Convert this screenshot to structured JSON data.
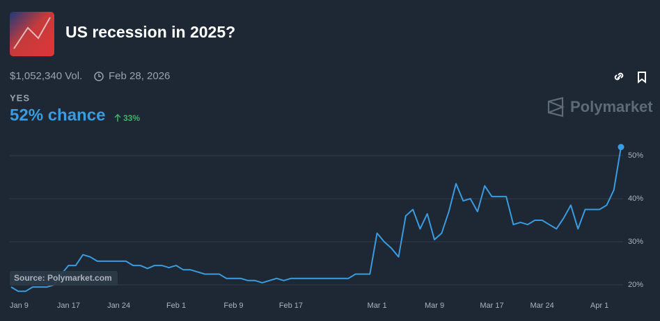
{
  "header": {
    "title": "US recession in 2025?",
    "volume": "$1,052,340 Vol.",
    "end_date": "Feb 28, 2026",
    "outcome": "YES",
    "chance": "52% chance",
    "change": "33%",
    "brand": "Polymarket"
  },
  "chart_data": {
    "type": "line",
    "source": "Source: Polymarket.com",
    "color": "#3b9be0",
    "grid": true,
    "categories": [
      "Jan 9",
      null,
      null,
      null,
      null,
      null,
      null,
      null,
      "Jan 17",
      null,
      null,
      null,
      null,
      null,
      null,
      "Jan 24",
      null,
      null,
      null,
      null,
      null,
      null,
      null,
      "Feb 1",
      null,
      null,
      null,
      null,
      null,
      null,
      null,
      "Feb 9",
      null,
      null,
      null,
      null,
      null,
      null,
      null,
      "Feb 17",
      null,
      null,
      null,
      null,
      null,
      null,
      null,
      null,
      null,
      null,
      null,
      "Mar 1",
      null,
      null,
      null,
      null,
      null,
      null,
      null,
      "Mar 9",
      null,
      null,
      null,
      null,
      null,
      null,
      null,
      "Mar 17",
      null,
      null,
      null,
      null,
      null,
      null,
      "Mar 24",
      null,
      null,
      null,
      null,
      null,
      null,
      null,
      "Apr 1",
      null,
      null,
      null
    ],
    "values": [
      19.5,
      18.5,
      18.5,
      19.5,
      19.5,
      19.5,
      20,
      22.5,
      24.5,
      24.5,
      27,
      26.5,
      25.5,
      25.5,
      25.5,
      25.5,
      25.5,
      24.5,
      24.5,
      23.8,
      24.5,
      24.5,
      24,
      24.5,
      23.5,
      23.5,
      23,
      22.5,
      22.5,
      22.5,
      21.5,
      21.5,
      21.5,
      21,
      21,
      20.5,
      21,
      21.5,
      21,
      21.5,
      21.5,
      21.5,
      21.5,
      21.5,
      21.5,
      21.5,
      21.5,
      21.5,
      22.5,
      22.5,
      22.5,
      32,
      30,
      28.5,
      26.5,
      36,
      37.5,
      33,
      36.5,
      30.5,
      32,
      37,
      43.5,
      39.5,
      40,
      37,
      43,
      40.5,
      40.5,
      40.5,
      34,
      34.5,
      34,
      35,
      35,
      34,
      33,
      35.5,
      38.5,
      33,
      37.5,
      37.5,
      37.5,
      38.5,
      42,
      52
    ],
    "ylim": [
      17,
      54
    ],
    "yticks": [
      {
        "value": 20,
        "label": "20%"
      },
      {
        "value": 30,
        "label": "30%"
      },
      {
        "value": 40,
        "label": "40%"
      },
      {
        "value": 50,
        "label": "50%"
      }
    ]
  }
}
